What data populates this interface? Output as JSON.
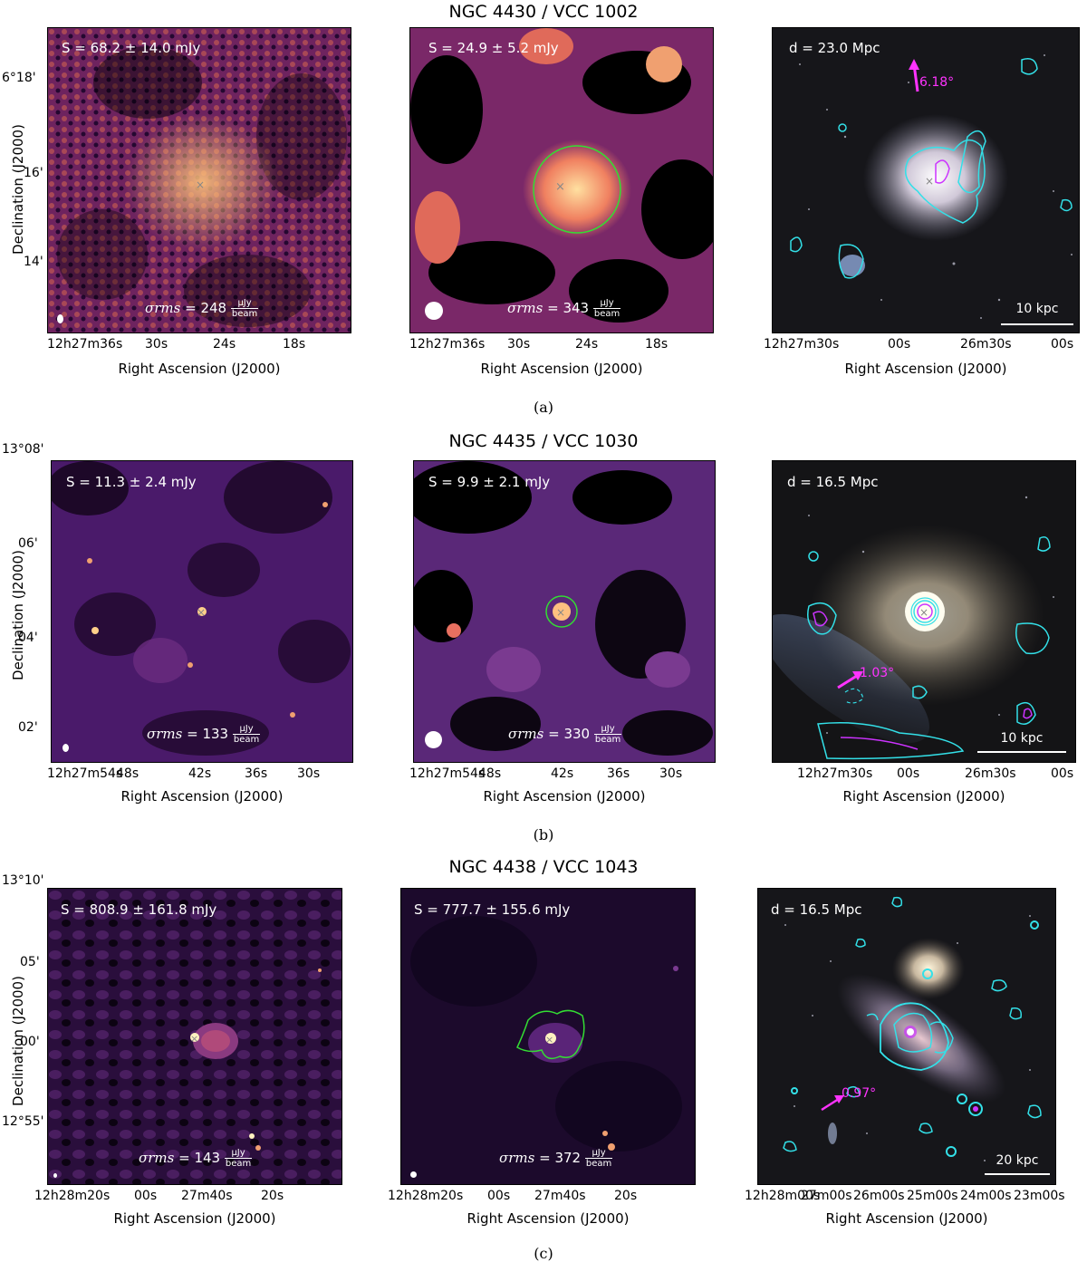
{
  "rows": [
    {
      "title": "NGC 4430 / VCC 1002",
      "caption": "(a)",
      "left": {
        "flux": "S = 68.2 ± 14.0 mJy",
        "rms_value": "= 248",
        "rms_unit_num": "μJy",
        "rms_unit_den": "beam"
      },
      "mid": {
        "flux": "S = 24.9 ± 5.2 mJy",
        "rms_value": "= 343",
        "rms_unit_num": "μJy",
        "rms_unit_den": "beam"
      },
      "right": {
        "distance": "d = 23.0 Mpc",
        "angle": "6.18°",
        "scalebar": "10 kpc"
      },
      "ra_ticks_lm": [
        "12h27m36s",
        "30s",
        "24s",
        "18s"
      ],
      "ra_ticks_r": [
        "12h27m30s",
        "00s",
        "26m30s",
        "00s"
      ],
      "dec_ticks": [
        "6°18'",
        "16'",
        "14'"
      ]
    },
    {
      "title": "NGC 4435 / VCC 1030",
      "caption": "(b)",
      "left": {
        "flux": "S = 11.3 ± 2.4 mJy",
        "rms_value": "= 133",
        "rms_unit_num": "μJy",
        "rms_unit_den": "beam"
      },
      "mid": {
        "flux": "S = 9.9 ± 2.1 mJy",
        "rms_value": "= 330",
        "rms_unit_num": "μJy",
        "rms_unit_den": "beam"
      },
      "right": {
        "distance": "d = 16.5 Mpc",
        "angle": "1.03°",
        "scalebar": "10 kpc"
      },
      "ra_ticks_lm": [
        "12h27m54s",
        "48s",
        "42s",
        "36s",
        "30s"
      ],
      "ra_ticks_r": [
        "12h27m30s",
        "00s",
        "26m30s",
        "00s"
      ],
      "dec_ticks": [
        "13°08'",
        "06'",
        "04'",
        "02'"
      ]
    },
    {
      "title": "NGC 4438 / VCC 1043",
      "caption": "(c)",
      "left": {
        "flux": "S = 808.9 ± 161.8 mJy",
        "rms_value": "= 143",
        "rms_unit_num": "μJy",
        "rms_unit_den": "beam"
      },
      "mid": {
        "flux": "S = 777.7 ± 155.6 mJy",
        "rms_value": "= 372",
        "rms_unit_num": "μJy",
        "rms_unit_den": "beam"
      },
      "right": {
        "distance": "d = 16.5 Mpc",
        "angle": "0.97°",
        "scalebar": "20 kpc"
      },
      "ra_ticks_lm": [
        "12h28m20s",
        "00s",
        "27m40s",
        "20s"
      ],
      "ra_ticks_r": [
        "12h28m00s",
        "27m00s",
        "26m00s",
        "25m00s",
        "24m00s",
        "23m00s"
      ],
      "dec_ticks": [
        "13°10'",
        "05'",
        "00'",
        "12°55'"
      ]
    }
  ],
  "axis_labels": {
    "x": "Right Ascension (J2000)",
    "y": "Declination (J2000)"
  },
  "rms_symbol": "σrms",
  "colors": {
    "contour_cyan": "#33e0e8",
    "contour_magenta": "#cc33ff",
    "region_green": "#33dd33",
    "arrow_magenta": "#ff33ff"
  }
}
